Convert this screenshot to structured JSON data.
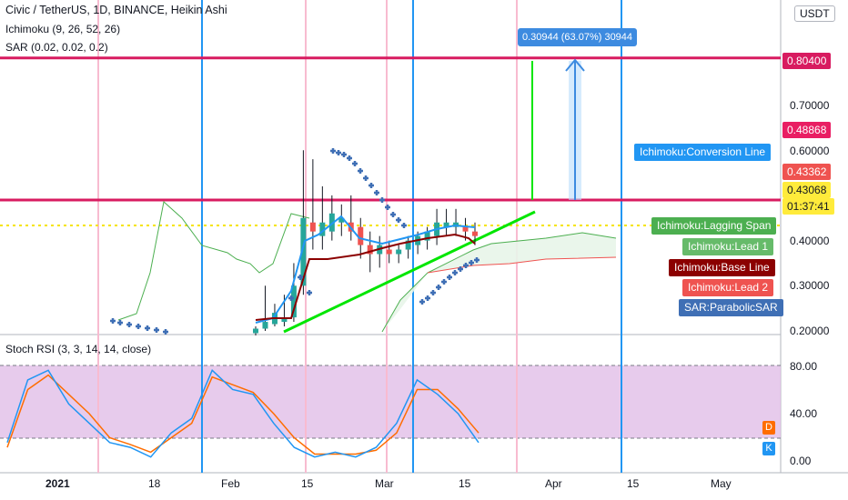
{
  "header": {
    "symbol_line": "Civic / TetherUS, 1D, BINANCE, Heikin Ashi",
    "ichimoku": "Ichimoku (9, 26, 52, 26)",
    "sar": "SAR (0.02, 0.02, 0.2)",
    "stoch_rsi": "Stoch RSI (3, 3, 14, 14, close)"
  },
  "price_axis": {
    "unit": "USDT",
    "ticks": [
      "0.70000",
      "0.60000",
      "0.40000",
      "0.30000",
      "0.20000"
    ],
    "tags": {
      "top_level": "0.80400",
      "high": "0.48868",
      "conversion": "0.43362",
      "last": "0.43068",
      "countdown": "01:37:41"
    }
  },
  "rsi_axis": {
    "ticks": [
      "80.00",
      "40.00",
      "0.00"
    ]
  },
  "time_axis": [
    "2021",
    "18",
    "Feb",
    "15",
    "Mar",
    "15",
    "Apr",
    "15",
    "May"
  ],
  "measure_label": "0.30944 (63.07%) 30944",
  "indicator_labels": [
    {
      "text": "Ichimoku:Conversion Line",
      "color": "#2196f3"
    },
    {
      "text": "Ichimoku:Lagging Span",
      "color": "#4caf50"
    },
    {
      "text": "Ichimoku:Lead 1",
      "color": "#66bb6a"
    },
    {
      "text": "Ichimoku:Base Line",
      "color": "#8b0000"
    },
    {
      "text": "Ichimoku:Lead 2",
      "color": "#ef5350"
    },
    {
      "text": "SAR:ParabolicSAR",
      "color": "#3f6fb5"
    }
  ],
  "dk_labels": {
    "d": "D",
    "k": "K"
  },
  "colors": {
    "up": "#26a69a",
    "down": "#ef5350",
    "magenta": "#d81b60",
    "blue": "#2196f3",
    "green_trend": "#00e600",
    "rsi_band": "#e1bee7",
    "k_line": "#2196f3",
    "d_line": "#ff6d00",
    "sar": "#3f6fb5",
    "conversion": "#2196f3",
    "base": "#8b0000",
    "lagging": "#4caf50"
  },
  "chart_data": {
    "type": "candlestick",
    "title": "Civic / TetherUS, 1D, BINANCE, Heikin Ashi",
    "ylim": [
      0.17,
      0.86
    ],
    "horizontal_levels": [
      0.804,
      0.43068
    ],
    "candles": [
      {
        "x": "Feb 3",
        "o": 0.195,
        "h": 0.21,
        "l": 0.19,
        "c": 0.205,
        "up": true
      },
      {
        "x": "Feb 5",
        "o": 0.205,
        "h": 0.3,
        "l": 0.2,
        "c": 0.22,
        "up": true
      },
      {
        "x": "Feb 7",
        "o": 0.215,
        "h": 0.26,
        "l": 0.21,
        "c": 0.24,
        "up": true
      },
      {
        "x": "Feb 9",
        "o": 0.22,
        "h": 0.28,
        "l": 0.21,
        "c": 0.23,
        "up": true
      },
      {
        "x": "Feb 11",
        "o": 0.23,
        "h": 0.35,
        "l": 0.22,
        "c": 0.3,
        "up": true
      },
      {
        "x": "Feb 12",
        "o": 0.3,
        "h": 0.6,
        "l": 0.28,
        "c": 0.45,
        "up": true
      },
      {
        "x": "Feb 13",
        "o": 0.42,
        "h": 0.58,
        "l": 0.38,
        "c": 0.44,
        "up": false
      },
      {
        "x": "Feb 14",
        "o": 0.41,
        "h": 0.52,
        "l": 0.38,
        "c": 0.44,
        "up": true
      },
      {
        "x": "Feb 15",
        "o": 0.42,
        "h": 0.5,
        "l": 0.4,
        "c": 0.46,
        "up": true
      },
      {
        "x": "Feb 17",
        "o": 0.44,
        "h": 0.48,
        "l": 0.41,
        "c": 0.45,
        "up": true
      },
      {
        "x": "Feb 19",
        "o": 0.44,
        "h": 0.5,
        "l": 0.4,
        "c": 0.42,
        "up": false
      },
      {
        "x": "Feb 21",
        "o": 0.43,
        "h": 0.45,
        "l": 0.36,
        "c": 0.39,
        "up": false
      },
      {
        "x": "Feb 23",
        "o": 0.39,
        "h": 0.42,
        "l": 0.33,
        "c": 0.37,
        "up": false
      },
      {
        "x": "Feb 25",
        "o": 0.37,
        "h": 0.41,
        "l": 0.34,
        "c": 0.39,
        "up": true
      },
      {
        "x": "Feb 27",
        "o": 0.38,
        "h": 0.4,
        "l": 0.35,
        "c": 0.37,
        "up": false
      },
      {
        "x": "Mar 1",
        "o": 0.37,
        "h": 0.39,
        "l": 0.35,
        "c": 0.38,
        "up": true
      },
      {
        "x": "Mar 3",
        "o": 0.38,
        "h": 0.41,
        "l": 0.36,
        "c": 0.4,
        "up": true
      },
      {
        "x": "Mar 5",
        "o": 0.39,
        "h": 0.42,
        "l": 0.37,
        "c": 0.41,
        "up": true
      },
      {
        "x": "Mar 7",
        "o": 0.4,
        "h": 0.43,
        "l": 0.38,
        "c": 0.42,
        "up": true
      },
      {
        "x": "Mar 9",
        "o": 0.41,
        "h": 0.47,
        "l": 0.39,
        "c": 0.44,
        "up": true
      },
      {
        "x": "Mar 11",
        "o": 0.43,
        "h": 0.47,
        "l": 0.41,
        "c": 0.44,
        "up": true
      },
      {
        "x": "Mar 13",
        "o": 0.43,
        "h": 0.47,
        "l": 0.41,
        "c": 0.44,
        "up": true
      },
      {
        "x": "Mar 15",
        "o": 0.43,
        "h": 0.45,
        "l": 0.4,
        "c": 0.42,
        "up": false
      },
      {
        "x": "Mar 17",
        "o": 0.42,
        "h": 0.44,
        "l": 0.39,
        "c": 0.41,
        "up": false
      }
    ],
    "stoch_rsi": {
      "ylim": [
        0,
        100
      ],
      "bands": [
        80,
        20
      ],
      "k": [
        20,
        85,
        95,
        60,
        40,
        20,
        15,
        5,
        30,
        45,
        95,
        75,
        70,
        40,
        15,
        5,
        10,
        5,
        15,
        40,
        85,
        70,
        50,
        20
      ],
      "d": [
        15,
        75,
        90,
        70,
        50,
        25,
        18,
        10,
        25,
        40,
        88,
        80,
        72,
        50,
        25,
        8,
        8,
        8,
        12,
        30,
        75,
        75,
        55,
        30
      ]
    }
  }
}
